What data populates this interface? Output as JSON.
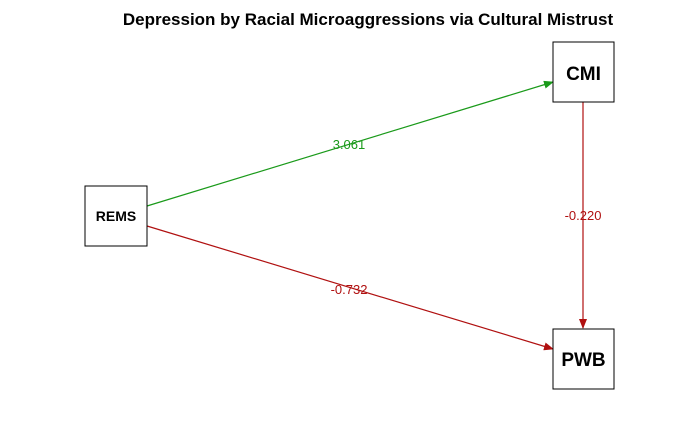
{
  "title": "Depression by Racial Microaggressions via Cultural Mistrust",
  "colors": {
    "positive": "#1a9a1a",
    "negative": "#b01010",
    "node_border": "#000000"
  },
  "nodes": {
    "rems": "REMS",
    "cmi": "CMI",
    "pwb": "PWB"
  },
  "edges": {
    "rems_cmi": "3.061",
    "cmi_pwb": "-0.220",
    "rems_pwb": "-0.732"
  }
}
